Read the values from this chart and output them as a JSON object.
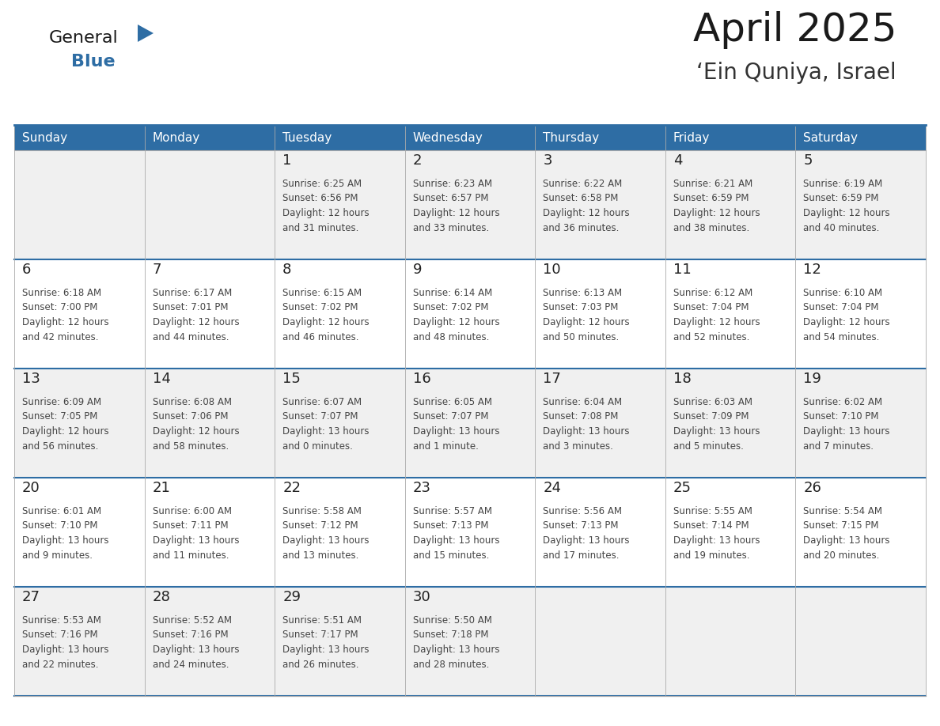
{
  "title": "April 2025",
  "subtitle": "‘Ein Quniya, Israel",
  "days_of_week": [
    "Sunday",
    "Monday",
    "Tuesday",
    "Wednesday",
    "Thursday",
    "Friday",
    "Saturday"
  ],
  "header_bg": "#2E6DA4",
  "header_text": "#FFFFFF",
  "row_bg_odd": "#F0F0F0",
  "row_bg_even": "#FFFFFF",
  "cell_border_color": "#AAAAAA",
  "row_border_color": "#2E6DA4",
  "day_number_color": "#222222",
  "text_color": "#444444",
  "title_color": "#1a1a1a",
  "subtitle_color": "#333333",
  "logo_general_color": "#1a1a1a",
  "logo_blue_color": "#2E6DA4",
  "calendar": [
    [
      {
        "day": null,
        "info": ""
      },
      {
        "day": null,
        "info": ""
      },
      {
        "day": 1,
        "info": "Sunrise: 6:25 AM\nSunset: 6:56 PM\nDaylight: 12 hours\nand 31 minutes."
      },
      {
        "day": 2,
        "info": "Sunrise: 6:23 AM\nSunset: 6:57 PM\nDaylight: 12 hours\nand 33 minutes."
      },
      {
        "day": 3,
        "info": "Sunrise: 6:22 AM\nSunset: 6:58 PM\nDaylight: 12 hours\nand 36 minutes."
      },
      {
        "day": 4,
        "info": "Sunrise: 6:21 AM\nSunset: 6:59 PM\nDaylight: 12 hours\nand 38 minutes."
      },
      {
        "day": 5,
        "info": "Sunrise: 6:19 AM\nSunset: 6:59 PM\nDaylight: 12 hours\nand 40 minutes."
      }
    ],
    [
      {
        "day": 6,
        "info": "Sunrise: 6:18 AM\nSunset: 7:00 PM\nDaylight: 12 hours\nand 42 minutes."
      },
      {
        "day": 7,
        "info": "Sunrise: 6:17 AM\nSunset: 7:01 PM\nDaylight: 12 hours\nand 44 minutes."
      },
      {
        "day": 8,
        "info": "Sunrise: 6:15 AM\nSunset: 7:02 PM\nDaylight: 12 hours\nand 46 minutes."
      },
      {
        "day": 9,
        "info": "Sunrise: 6:14 AM\nSunset: 7:02 PM\nDaylight: 12 hours\nand 48 minutes."
      },
      {
        "day": 10,
        "info": "Sunrise: 6:13 AM\nSunset: 7:03 PM\nDaylight: 12 hours\nand 50 minutes."
      },
      {
        "day": 11,
        "info": "Sunrise: 6:12 AM\nSunset: 7:04 PM\nDaylight: 12 hours\nand 52 minutes."
      },
      {
        "day": 12,
        "info": "Sunrise: 6:10 AM\nSunset: 7:04 PM\nDaylight: 12 hours\nand 54 minutes."
      }
    ],
    [
      {
        "day": 13,
        "info": "Sunrise: 6:09 AM\nSunset: 7:05 PM\nDaylight: 12 hours\nand 56 minutes."
      },
      {
        "day": 14,
        "info": "Sunrise: 6:08 AM\nSunset: 7:06 PM\nDaylight: 12 hours\nand 58 minutes."
      },
      {
        "day": 15,
        "info": "Sunrise: 6:07 AM\nSunset: 7:07 PM\nDaylight: 13 hours\nand 0 minutes."
      },
      {
        "day": 16,
        "info": "Sunrise: 6:05 AM\nSunset: 7:07 PM\nDaylight: 13 hours\nand 1 minute."
      },
      {
        "day": 17,
        "info": "Sunrise: 6:04 AM\nSunset: 7:08 PM\nDaylight: 13 hours\nand 3 minutes."
      },
      {
        "day": 18,
        "info": "Sunrise: 6:03 AM\nSunset: 7:09 PM\nDaylight: 13 hours\nand 5 minutes."
      },
      {
        "day": 19,
        "info": "Sunrise: 6:02 AM\nSunset: 7:10 PM\nDaylight: 13 hours\nand 7 minutes."
      }
    ],
    [
      {
        "day": 20,
        "info": "Sunrise: 6:01 AM\nSunset: 7:10 PM\nDaylight: 13 hours\nand 9 minutes."
      },
      {
        "day": 21,
        "info": "Sunrise: 6:00 AM\nSunset: 7:11 PM\nDaylight: 13 hours\nand 11 minutes."
      },
      {
        "day": 22,
        "info": "Sunrise: 5:58 AM\nSunset: 7:12 PM\nDaylight: 13 hours\nand 13 minutes."
      },
      {
        "day": 23,
        "info": "Sunrise: 5:57 AM\nSunset: 7:13 PM\nDaylight: 13 hours\nand 15 minutes."
      },
      {
        "day": 24,
        "info": "Sunrise: 5:56 AM\nSunset: 7:13 PM\nDaylight: 13 hours\nand 17 minutes."
      },
      {
        "day": 25,
        "info": "Sunrise: 5:55 AM\nSunset: 7:14 PM\nDaylight: 13 hours\nand 19 minutes."
      },
      {
        "day": 26,
        "info": "Sunrise: 5:54 AM\nSunset: 7:15 PM\nDaylight: 13 hours\nand 20 minutes."
      }
    ],
    [
      {
        "day": 27,
        "info": "Sunrise: 5:53 AM\nSunset: 7:16 PM\nDaylight: 13 hours\nand 22 minutes."
      },
      {
        "day": 28,
        "info": "Sunrise: 5:52 AM\nSunset: 7:16 PM\nDaylight: 13 hours\nand 24 minutes."
      },
      {
        "day": 29,
        "info": "Sunrise: 5:51 AM\nSunset: 7:17 PM\nDaylight: 13 hours\nand 26 minutes."
      },
      {
        "day": 30,
        "info": "Sunrise: 5:50 AM\nSunset: 7:18 PM\nDaylight: 13 hours\nand 28 minutes."
      },
      {
        "day": null,
        "info": ""
      },
      {
        "day": null,
        "info": ""
      },
      {
        "day": null,
        "info": ""
      }
    ]
  ]
}
